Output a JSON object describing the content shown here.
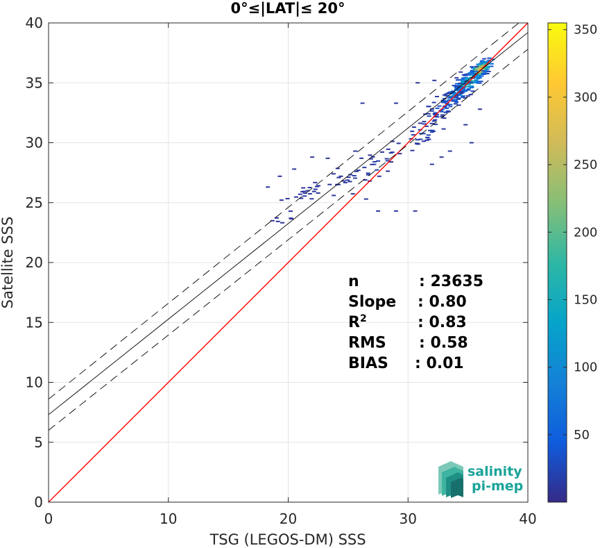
{
  "chart_data": {
    "type": "scatter",
    "subtype": "density-heatmap",
    "title": "0°≤|LAT|≤ 20°",
    "xlabel": "TSG (LEGOS-DM) SSS",
    "ylabel": "Satellite SSS",
    "xlim": [
      0,
      40
    ],
    "ylim": [
      0,
      40
    ],
    "xticks": [
      0,
      10,
      20,
      30,
      40
    ],
    "yticks": [
      0,
      5,
      10,
      15,
      20,
      25,
      30,
      35,
      40
    ],
    "grid": true,
    "lines": [
      {
        "name": "identity",
        "color": "#ff0000",
        "style": "solid",
        "x": [
          0,
          40
        ],
        "y": [
          0,
          40
        ]
      },
      {
        "name": "regression",
        "color": "#000000",
        "style": "solid",
        "x": [
          0,
          40
        ],
        "y": [
          7.3,
          39.2
        ]
      },
      {
        "name": "regression-upper",
        "color": "#000000",
        "style": "dashed",
        "x": [
          0,
          40
        ],
        "y": [
          8.6,
          40.6
        ]
      },
      {
        "name": "regression-lower",
        "color": "#000000",
        "style": "dashed",
        "x": [
          0,
          40
        ],
        "y": [
          6.0,
          37.8
        ]
      }
    ],
    "stats": [
      {
        "label": "n",
        "value": ": 23635"
      },
      {
        "label": "Slope",
        "value": ": 0.80"
      },
      {
        "label": "R",
        "sup": "2",
        "value": ": 0.83"
      },
      {
        "label": "RMS",
        "value": ": 0.58"
      },
      {
        "label": "BIAS",
        "value": ": 0.01"
      }
    ],
    "colorbar": {
      "range": [
        0,
        355
      ],
      "ticks": [
        50,
        100,
        150,
        200,
        250,
        300,
        350
      ],
      "colormap": "parula",
      "colors": [
        "#352a87",
        "#0f5cdd",
        "#1481d6",
        "#06a4ca",
        "#2eb7a4",
        "#87bf77",
        "#d1bb59",
        "#fec832",
        "#f9fb0e"
      ]
    },
    "density_clusters": [
      {
        "x": 36.0,
        "y": 36.1,
        "sx": 0.65,
        "sy": 0.55,
        "n": 150,
        "weight": 0.95
      },
      {
        "x": 35.0,
        "y": 35.0,
        "sx": 0.9,
        "sy": 0.75,
        "n": 110,
        "weight": 0.55
      },
      {
        "x": 34.0,
        "y": 34.0,
        "sx": 0.8,
        "sy": 0.7,
        "n": 60,
        "weight": 0.3
      },
      {
        "x": 33.0,
        "y": 33.0,
        "sx": 1.1,
        "sy": 1.2,
        "n": 50,
        "weight": 0.1
      },
      {
        "x": 31.5,
        "y": 31.0,
        "sx": 1.3,
        "sy": 1.0,
        "n": 35,
        "weight": 0.05
      },
      {
        "x": 27.0,
        "y": 28.0,
        "sx": 2.2,
        "sy": 1.1,
        "n": 30,
        "weight": 0.03
      },
      {
        "x": 22.0,
        "y": 25.8,
        "sx": 3.0,
        "sy": 1.2,
        "n": 35,
        "weight": 0.02
      }
    ],
    "sparse_points": [
      [
        18.3,
        26.3
      ],
      [
        19.3,
        27.2
      ],
      [
        20.5,
        27.8
      ],
      [
        22.0,
        28.8
      ],
      [
        23.3,
        28.7
      ],
      [
        24.4,
        27.2
      ],
      [
        21.0,
        25.7
      ],
      [
        22.5,
        25.8
      ],
      [
        23.8,
        25.6
      ],
      [
        26.5,
        25.3
      ],
      [
        27.5,
        24.3
      ],
      [
        29.0,
        24.3
      ],
      [
        30.6,
        24.3
      ],
      [
        26.8,
        26.8
      ],
      [
        27.6,
        27.2
      ],
      [
        28.6,
        28.4
      ],
      [
        25.6,
        29.3
      ],
      [
        26.2,
        33.3
      ],
      [
        29.0,
        33.3
      ],
      [
        32.8,
        28.8
      ],
      [
        33.5,
        29.3
      ],
      [
        35.3,
        30.0
      ],
      [
        32.0,
        28.2
      ],
      [
        34.8,
        31.5
      ],
      [
        33.4,
        32.6
      ],
      [
        36.0,
        32.8
      ],
      [
        30.8,
        35.0
      ],
      [
        32.2,
        35.2
      ],
      [
        34.4,
        35.9
      ],
      [
        30.5,
        31.3
      ]
    ]
  },
  "logo": {
    "line1": "salinity",
    "line2": "pi-mep",
    "color": "#1aa39a"
  }
}
